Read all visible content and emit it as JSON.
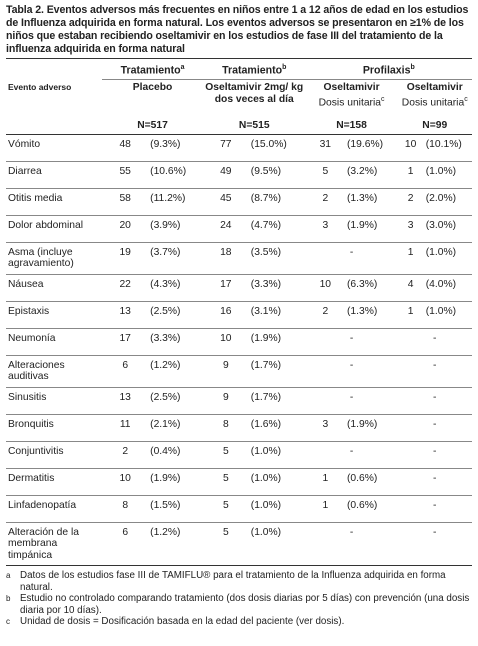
{
  "title": "Tabla 2. Eventos adversos más frecuentes en niños entre 1 a 12 años de edad en los estudios de Influenza adquirida en forma natural. Los eventos adversos se presentaron en ≥1% de los niños que estaban recibiendo oseltamivir en los estudios de fase III del tratamiento de la influenza adquirida en forma natural",
  "table": {
    "groups": [
      {
        "label": "Tratamiento",
        "note": "a"
      },
      {
        "label": "Tratamiento",
        "note": "b"
      },
      {
        "label": "Profilaxis",
        "note": "b"
      }
    ],
    "columns": [
      {
        "label": "Evento adverso"
      },
      {
        "label": "Placebo"
      },
      {
        "label": "Oseltamivir 2mg/ kg dos veces al día"
      },
      {
        "label": "Oseltamivir",
        "sub": "Dosis unitaria",
        "note": "c"
      },
      {
        "label": "Oseltamivir",
        "sub": "Dosis unitaria",
        "note": "c"
      }
    ],
    "n": [
      "N=517",
      "N=515",
      "N=158",
      "N=99"
    ],
    "rows": [
      [
        "Vómito",
        [
          48,
          "(9.3%)"
        ],
        [
          77,
          "(15.0%)"
        ],
        [
          31,
          "(19.6%)"
        ],
        [
          10,
          "(10.1%)"
        ]
      ],
      [
        "Diarrea",
        [
          55,
          "(10.6%)"
        ],
        [
          49,
          "(9.5%)"
        ],
        [
          5,
          "(3.2%)"
        ],
        [
          1,
          "(1.0%)"
        ]
      ],
      [
        "Otitis media",
        [
          58,
          "(11.2%)"
        ],
        [
          45,
          "(8.7%)"
        ],
        [
          2,
          "(1.3%)"
        ],
        [
          2,
          "(2.0%)"
        ]
      ],
      [
        "Dolor abdominal",
        [
          20,
          "(3.9%)"
        ],
        [
          24,
          "(4.7%)"
        ],
        [
          3,
          "(1.9%)"
        ],
        [
          3,
          "(3.0%)"
        ]
      ],
      [
        "Asma (incluye agravamiento)",
        [
          19,
          "(3.7%)"
        ],
        [
          18,
          "(3.5%)"
        ],
        "-",
        [
          1,
          "(1.0%)"
        ]
      ],
      [
        "Náusea",
        [
          22,
          "(4.3%)"
        ],
        [
          17,
          "(3.3%)"
        ],
        [
          10,
          "(6.3%)"
        ],
        [
          4,
          "(4.0%)"
        ]
      ],
      [
        "Epistaxis",
        [
          13,
          "(2.5%)"
        ],
        [
          16,
          "(3.1%)"
        ],
        [
          2,
          "(1.3%)"
        ],
        [
          1,
          "(1.0%)"
        ]
      ],
      [
        "Neumonía",
        [
          17,
          "(3.3%)"
        ],
        [
          10,
          "(1.9%)"
        ],
        "-",
        "-"
      ],
      [
        "Alteraciones auditivas",
        [
          6,
          "(1.2%)"
        ],
        [
          9,
          "(1.7%)"
        ],
        "-",
        "-"
      ],
      [
        "Sinusitis",
        [
          13,
          "(2.5%)"
        ],
        [
          9,
          "(1.7%)"
        ],
        "-",
        "-"
      ],
      [
        "Bronquitis",
        [
          11,
          "(2.1%)"
        ],
        [
          8,
          "(1.6%)"
        ],
        [
          3,
          "(1.9%)"
        ],
        "-"
      ],
      [
        "Conjuntivitis",
        [
          2,
          "(0.4%)"
        ],
        [
          5,
          "(1.0%)"
        ],
        "-",
        "-"
      ],
      [
        "Dermatitis",
        [
          10,
          "(1.9%)"
        ],
        [
          5,
          "(1.0%)"
        ],
        [
          1,
          "(0.6%)"
        ],
        "-"
      ],
      [
        "Linfadenopatía",
        [
          8,
          "(1.5%)"
        ],
        [
          5,
          "(1.0%)"
        ],
        [
          1,
          "(0.6%)"
        ],
        "-"
      ],
      [
        "Alteración de la membrana timpánica",
        [
          6,
          "(1.2%)"
        ],
        [
          5,
          "(1.0%)"
        ],
        "-",
        "-"
      ]
    ]
  },
  "footnotes": [
    {
      "mark": "a",
      "text": "Datos de los estudios fase III de TAMIFLU® para el tratamiento de la Influenza adquirida en forma natural."
    },
    {
      "mark": "b",
      "text": "Estudio no controlado comparando tratamiento (dos dosis diarias por 5 días) con prevención (una dosis diaria por 10 días)."
    },
    {
      "mark": "c",
      "text": "Unidad de dosis = Dosificación basada en la edad del paciente (ver dosis)."
    }
  ]
}
